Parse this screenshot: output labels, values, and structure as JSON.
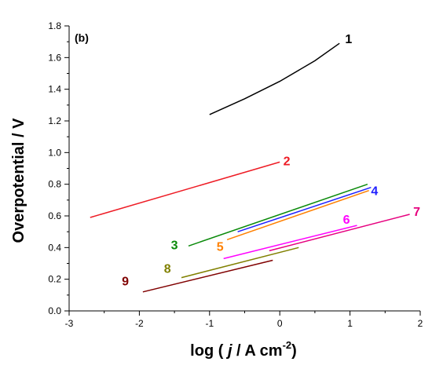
{
  "chart_data": {
    "type": "line",
    "panel_label": "(b)",
    "xlabel_parts": {
      "prefix": "log ( ",
      "italic": "j",
      "middle": " / A cm",
      "sup": "-2",
      "suffix": ")"
    },
    "ylabel": "Overpotential / V",
    "xlim": [
      -3,
      2
    ],
    "ylim": [
      0,
      1.8
    ],
    "xticks": [
      "-3",
      "-2",
      "-1",
      "0",
      "1",
      "2"
    ],
    "yticks": [
      "0.0",
      "0.2",
      "0.4",
      "0.6",
      "0.8",
      "1.0",
      "1.2",
      "1.4",
      "1.6",
      "1.8"
    ],
    "grid": false,
    "series": [
      {
        "name": "1",
        "color": "#000000",
        "x": [
          -1.0,
          -0.5,
          0.0,
          0.5,
          0.85
        ],
        "y": [
          1.24,
          1.34,
          1.45,
          1.58,
          1.69
        ],
        "label_at": [
          0.98,
          1.72
        ]
      },
      {
        "name": "2",
        "color": "#ee1c25",
        "x": [
          -2.7,
          0.0
        ],
        "y": [
          0.59,
          0.94
        ],
        "label_at": [
          0.1,
          0.95
        ]
      },
      {
        "name": "3",
        "color": "#0a8a0a",
        "x": [
          -1.3,
          1.25
        ],
        "y": [
          0.41,
          0.8
        ],
        "label_at": [
          -1.5,
          0.42
        ]
      },
      {
        "name": "4",
        "color": "#1f1fff",
        "x": [
          -0.6,
          1.3
        ],
        "y": [
          0.5,
          0.78
        ],
        "label_at": [
          1.35,
          0.76
        ]
      },
      {
        "name": "5",
        "color": "#ff8000",
        "x": [
          -0.75,
          1.27
        ],
        "y": [
          0.45,
          0.76
        ],
        "label_at": [
          -0.85,
          0.41
        ]
      },
      {
        "name": "6",
        "color": "#ff00ff",
        "x": [
          -0.8,
          1.1
        ],
        "y": [
          0.33,
          0.54
        ],
        "label_at": [
          0.95,
          0.58
        ]
      },
      {
        "name": "7",
        "color": "#e6007e",
        "x": [
          -0.15,
          1.85
        ],
        "y": [
          0.38,
          0.61
        ],
        "label_at": [
          1.95,
          0.63
        ]
      },
      {
        "name": "8",
        "color": "#808000",
        "x": [
          -1.4,
          0.27
        ],
        "y": [
          0.21,
          0.4
        ],
        "label_at": [
          -1.6,
          0.27
        ]
      },
      {
        "name": "9",
        "color": "#800000",
        "x": [
          -1.95,
          -0.1
        ],
        "y": [
          0.12,
          0.32
        ],
        "label_at": [
          -2.2,
          0.19
        ]
      }
    ]
  }
}
